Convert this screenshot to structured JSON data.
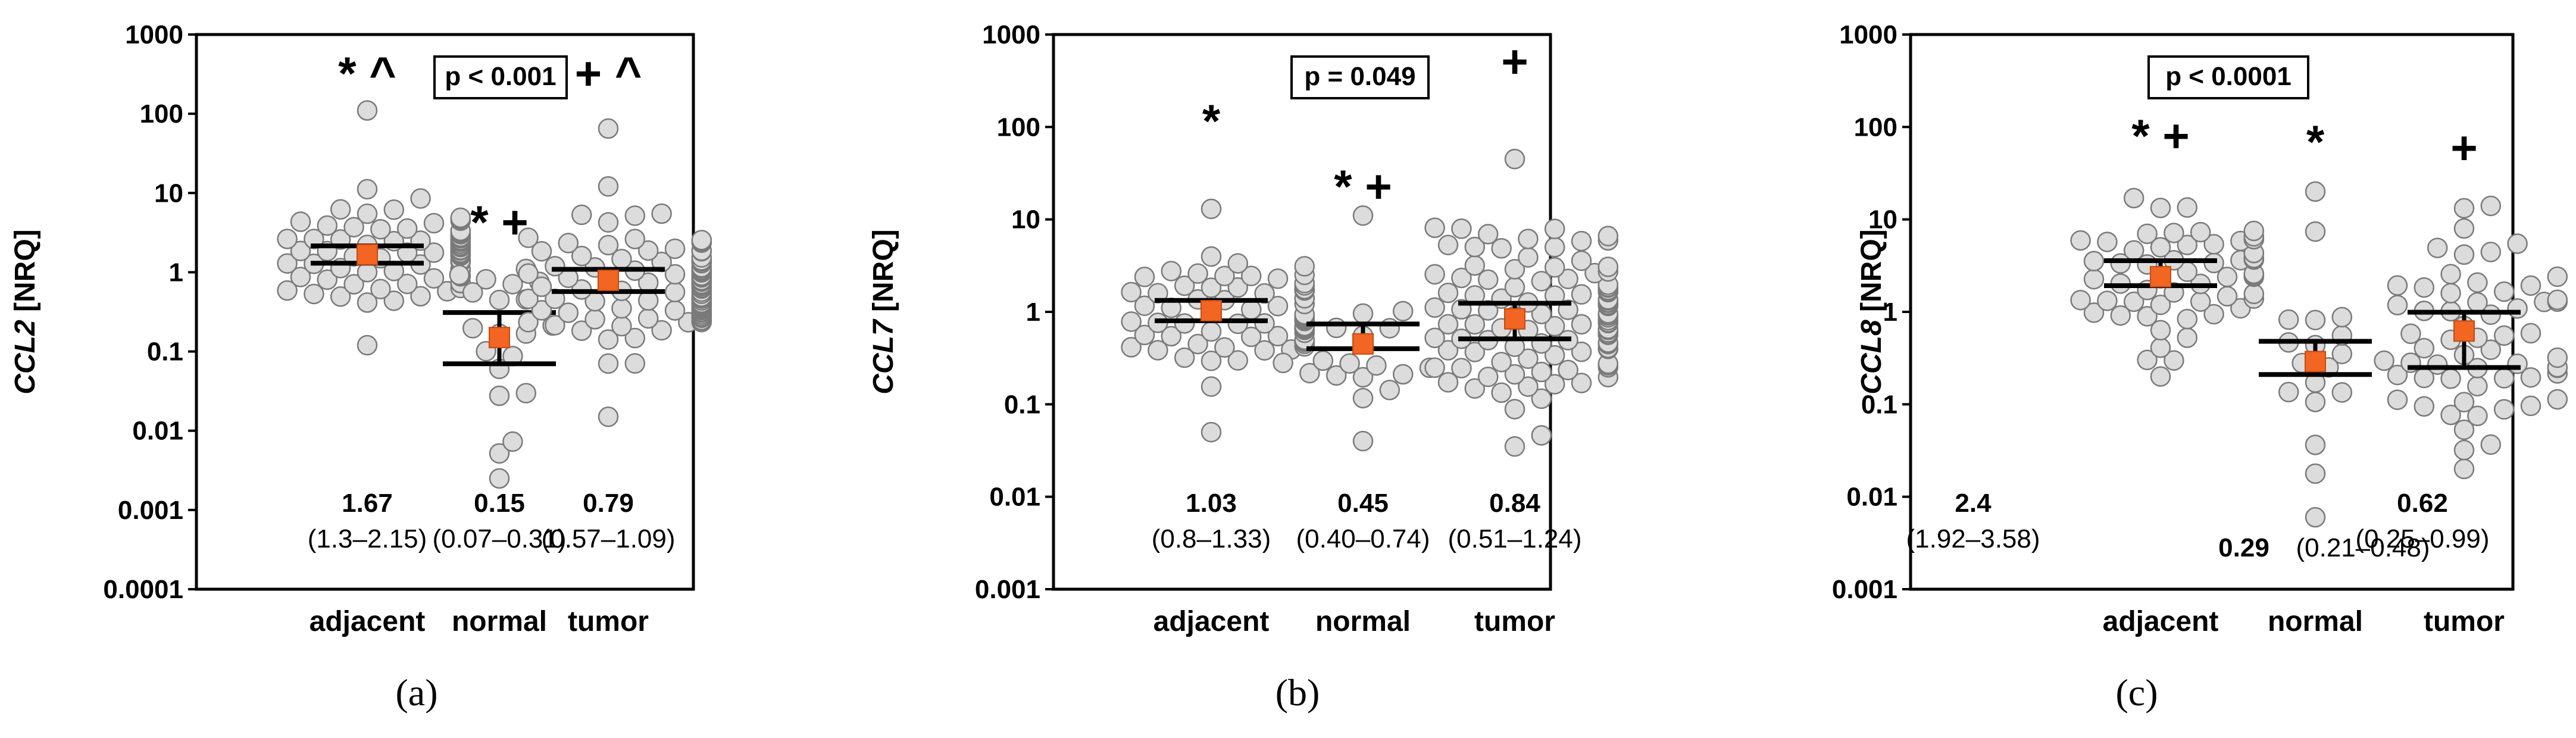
{
  "figure": {
    "panels": [
      "(a)",
      "(b)",
      "(c)"
    ]
  },
  "colors": {
    "dot_fill": "#dcdcdc",
    "dot_stroke": "#7a7a7a",
    "median_marker": "#f26522",
    "axis": "#000000",
    "text": "#000000"
  },
  "chart_data": [
    {
      "type": "scatter",
      "caption": "(a)",
      "gene": "CCL2",
      "ylabel_suffix": "[NRQ]",
      "yscale": "log",
      "ylim": [
        0.0001,
        1000
      ],
      "yticks": [
        0.0001,
        0.001,
        0.01,
        0.1,
        1,
        10,
        100,
        1000
      ],
      "ytick_labels": [
        "0.0001",
        "0.001",
        "0.01",
        "0.1",
        "1",
        "10",
        "100",
        "1000"
      ],
      "categories": [
        "adjacent",
        "normal",
        "tumor"
      ],
      "pvalue": "p < 0.001",
      "groups": [
        {
          "name": "adjacent",
          "median": 1.67,
          "median_label": "1.67",
          "q1": 1.3,
          "q3": 2.15,
          "iqr_label": "(1.3–2.15)",
          "significance": "* ^",
          "range": [
            0.12,
            110
          ],
          "n_points": 95
        },
        {
          "name": "normal",
          "median": 0.15,
          "median_label": "0.15",
          "q1": 0.07,
          "q3": 0.31,
          "iqr_label": "(0.07–0.31)",
          "significance": "* +",
          "range": [
            0.0025,
            1.1
          ],
          "n_points": 20
        },
        {
          "name": "tumor",
          "median": 0.79,
          "median_label": "0.79",
          "q1": 0.57,
          "q3": 1.09,
          "iqr_label": "(0.57–1.09)",
          "significance": "+ ^",
          "range": [
            0.015,
            65
          ],
          "n_points": 115
        }
      ]
    },
    {
      "type": "scatter",
      "caption": "(b)",
      "gene": "CCL7",
      "ylabel_suffix": "[NRQ]",
      "yscale": "log",
      "ylim": [
        0.001,
        1000
      ],
      "yticks": [
        0.001,
        0.01,
        0.1,
        1,
        10,
        100,
        1000
      ],
      "ytick_labels": [
        "0.001",
        "0.01",
        "0.1",
        "1",
        "10",
        "100",
        "1000"
      ],
      "categories": [
        "adjacent",
        "normal",
        "tumor"
      ],
      "pvalue": "p = 0.049",
      "groups": [
        {
          "name": "adjacent",
          "median": 1.03,
          "median_label": "1.03",
          "q1": 0.8,
          "q3": 1.33,
          "iqr_label": "(0.8–1.33)",
          "significance": "*",
          "range": [
            0.05,
            13
          ],
          "n_points": 80
        },
        {
          "name": "normal",
          "median": 0.45,
          "median_label": "0.45",
          "q1": 0.4,
          "q3": 0.74,
          "iqr_label": "(0.40–0.74)",
          "significance": "* +",
          "range": [
            0.04,
            11
          ],
          "n_points": 18
        },
        {
          "name": "tumor",
          "median": 0.84,
          "median_label": "0.84",
          "q1": 0.51,
          "q3": 1.24,
          "iqr_label": "(0.51–1.24)",
          "significance": "+",
          "range": [
            0.035,
            45
          ],
          "n_points": 110
        }
      ]
    },
    {
      "type": "scatter",
      "caption": "(c)",
      "gene": "CCL8",
      "ylabel_suffix": "[NRQ]",
      "yscale": "log",
      "ylim": [
        0.001,
        1000
      ],
      "yticks": [
        0.001,
        0.01,
        0.1,
        1,
        10,
        100,
        1000
      ],
      "ytick_labels": [
        "0.001",
        "0.01",
        "0.1",
        "1",
        "10",
        "100",
        "1000"
      ],
      "categories": [
        "adjacent",
        "normal",
        "tumor"
      ],
      "pvalue": "p < 0.0001",
      "groups": [
        {
          "name": "adjacent",
          "median": 2.4,
          "median_label": "2.4",
          "q1": 1.92,
          "q3": 3.58,
          "iqr_label": "(1.92–3.58)",
          "significance": "* +",
          "range": [
            0.2,
            17
          ],
          "n_points": 60
        },
        {
          "name": "normal",
          "median": 0.29,
          "median_label": "0.29",
          "q1": 0.21,
          "q3": 0.48,
          "iqr_label": "(0.21–0.48)",
          "significance": "*",
          "range": [
            0.006,
            20
          ],
          "n_points": 18
        },
        {
          "name": "tumor",
          "median": 0.62,
          "median_label": "0.62",
          "q1": 0.25,
          "q3": 0.99,
          "iqr_label": "(0.25–0.99)",
          "significance": "+",
          "range": [
            0.02,
            14
          ],
          "n_points": 60
        }
      ]
    }
  ]
}
